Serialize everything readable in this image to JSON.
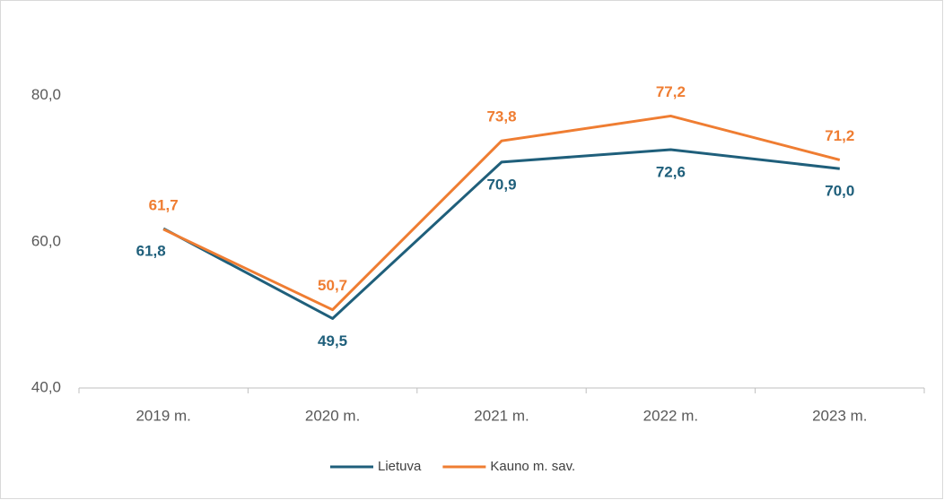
{
  "chart_data": {
    "type": "line",
    "categories": [
      "2019 m.",
      "2020 m.",
      "2021 m.",
      "2022 m.",
      "2023 m."
    ],
    "series": [
      {
        "name": "Lietuva",
        "color": "#1f5f7b",
        "values": [
          61.8,
          49.5,
          70.9,
          72.6,
          70.0
        ],
        "value_labels": [
          "61,8",
          "49,5",
          "70,9",
          "72,6",
          "70,0"
        ]
      },
      {
        "name": "Kauno m. sav.",
        "color": "#ef7d32",
        "values": [
          61.7,
          50.7,
          73.8,
          77.2,
          71.2
        ],
        "value_labels": [
          "61,7",
          "50,7",
          "73,8",
          "77,2",
          "71,2"
        ]
      }
    ],
    "ylim": [
      40,
      90
    ],
    "yticks": [
      {
        "value": 40,
        "label": "40,0"
      },
      {
        "value": 60,
        "label": "60,0"
      },
      {
        "value": 80,
        "label": "80,0"
      }
    ],
    "grid": false,
    "legend": "bottom"
  }
}
